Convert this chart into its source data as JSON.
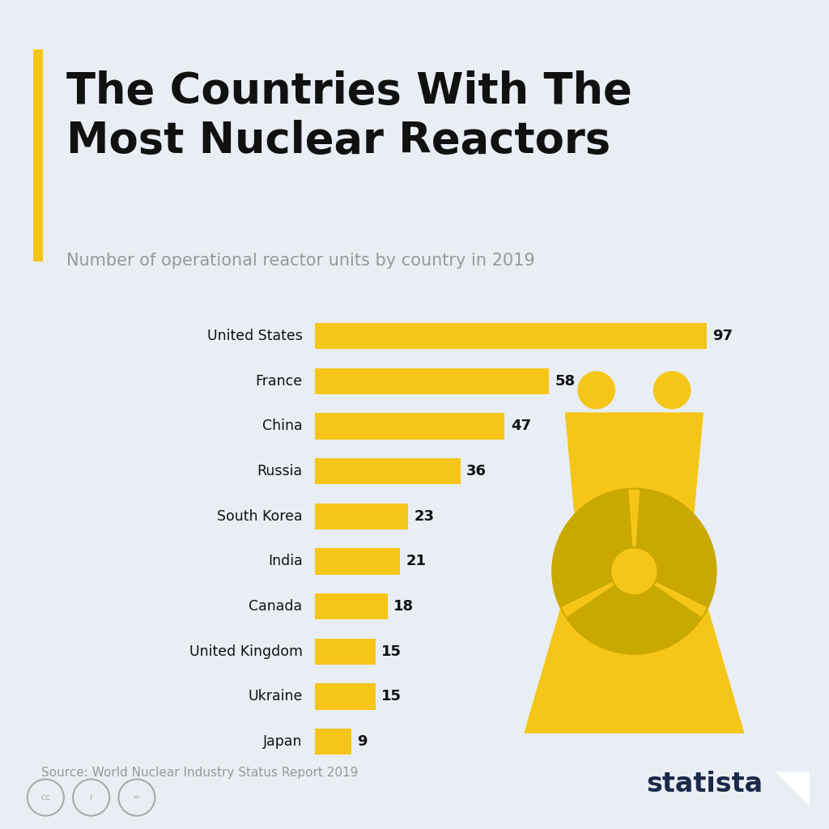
{
  "title_line1": "The Countries With The",
  "title_line2": "Most Nuclear Reactors",
  "subtitle": "Number of operational reactor units by country in 2019",
  "source": "Source: World Nuclear Industry Status Report 2019",
  "countries": [
    "United States",
    "France",
    "China",
    "Russia",
    "South Korea",
    "India",
    "Canada",
    "United Kingdom",
    "Ukraine",
    "Japan"
  ],
  "values": [
    97,
    58,
    47,
    36,
    23,
    21,
    18,
    15,
    15,
    9
  ],
  "bar_color": "#F5C518",
  "background_color": "#E9EEF4",
  "title_color": "#111111",
  "subtitle_color": "#999999",
  "label_color": "#111111",
  "value_color": "#111111",
  "accent_color": "#F5C518",
  "source_color": "#999999",
  "statista_color": "#1B2A4A",
  "tower_outline_color": "#C9A800",
  "xlim": 115,
  "bar_height": 0.58
}
